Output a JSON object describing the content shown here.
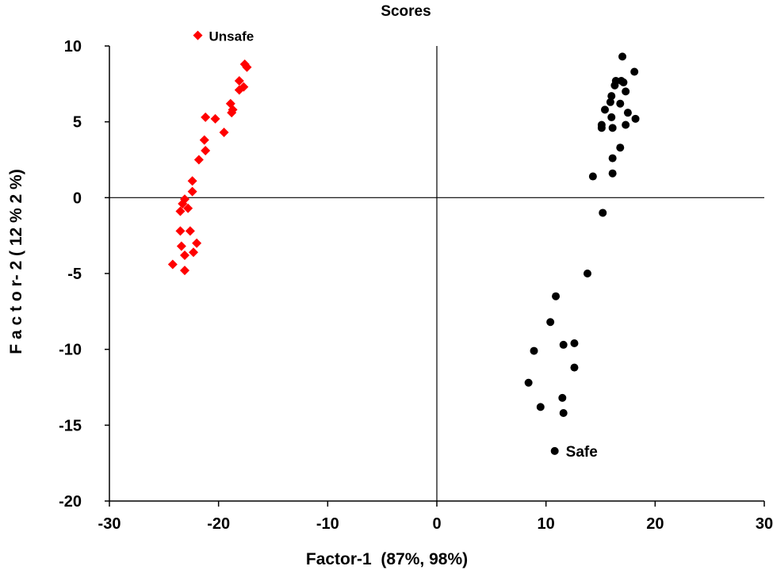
{
  "chart_data": {
    "type": "scatter",
    "title": "Scores",
    "xlabel": "Factor-1  (87%, 98%)",
    "ylabel": "F a c t o r- 2 ( 12 % 2 %)",
    "xlim": [
      -30,
      30
    ],
    "ylim": [
      -20,
      10
    ],
    "xticks": [
      -30,
      -20,
      -10,
      0,
      10,
      20,
      30
    ],
    "yticks": [
      -20,
      -15,
      -10,
      -5,
      0,
      5,
      10
    ],
    "x_tick_labels": [
      "-30",
      "-20",
      "-10",
      "0",
      "10",
      "20",
      "30"
    ],
    "y_tick_labels": [
      "-20",
      "-15",
      "-10",
      "-5",
      "0",
      "5",
      "10"
    ],
    "grid": false,
    "reference_lines": {
      "x": 0,
      "y": 0
    },
    "legend_placement": "inside",
    "series": [
      {
        "name": "Unsafe",
        "marker": "diamond",
        "color": "#ff0000",
        "legend_marker": {
          "x": -21.9,
          "y": 10.7
        },
        "points": [
          [
            -17.6,
            8.8
          ],
          [
            -17.4,
            8.6
          ],
          [
            -18.1,
            7.7
          ],
          [
            -17.7,
            7.3
          ],
          [
            -18.1,
            7.1
          ],
          [
            -18.9,
            6.2
          ],
          [
            -18.8,
            5.6
          ],
          [
            -18.7,
            5.8
          ],
          [
            -21.2,
            5.3
          ],
          [
            -20.3,
            5.2
          ],
          [
            -19.5,
            4.3
          ],
          [
            -21.3,
            3.8
          ],
          [
            -21.2,
            3.1
          ],
          [
            -21.8,
            2.5
          ],
          [
            -22.4,
            1.1
          ],
          [
            -22.4,
            0.4
          ],
          [
            -23.1,
            -0.1
          ],
          [
            -23.3,
            -0.4
          ],
          [
            -22.8,
            -0.7
          ],
          [
            -23.5,
            -0.9
          ],
          [
            -23.5,
            -2.2
          ],
          [
            -22.6,
            -2.2
          ],
          [
            -22.0,
            -3.0
          ],
          [
            -23.4,
            -3.2
          ],
          [
            -22.3,
            -3.6
          ],
          [
            -23.1,
            -3.8
          ],
          [
            -24.2,
            -4.4
          ],
          [
            -23.1,
            -4.8
          ]
        ]
      },
      {
        "name": "Safe",
        "marker": "circle",
        "color": "#000000",
        "legend_marker": {
          "x": 10.8,
          "y": -16.7
        },
        "points": [
          [
            17.0,
            9.3
          ],
          [
            18.1,
            8.3
          ],
          [
            16.4,
            7.7
          ],
          [
            16.9,
            7.7
          ],
          [
            17.1,
            7.6
          ],
          [
            16.3,
            7.4
          ],
          [
            17.3,
            7.0
          ],
          [
            16.0,
            6.7
          ],
          [
            15.9,
            6.3
          ],
          [
            16.8,
            6.2
          ],
          [
            15.4,
            5.8
          ],
          [
            16.0,
            5.3
          ],
          [
            17.5,
            5.6
          ],
          [
            18.2,
            5.2
          ],
          [
            15.1,
            4.8
          ],
          [
            15.1,
            4.6
          ],
          [
            16.1,
            4.6
          ],
          [
            17.3,
            4.8
          ],
          [
            16.8,
            3.3
          ],
          [
            16.1,
            2.6
          ],
          [
            14.3,
            1.4
          ],
          [
            16.1,
            1.6
          ],
          [
            15.2,
            -1.0
          ],
          [
            13.8,
            -5.0
          ],
          [
            10.9,
            -6.5
          ],
          [
            10.4,
            -8.2
          ],
          [
            8.9,
            -10.1
          ],
          [
            11.6,
            -9.7
          ],
          [
            12.6,
            -9.6
          ],
          [
            12.6,
            -11.2
          ],
          [
            8.4,
            -12.2
          ],
          [
            9.5,
            -13.8
          ],
          [
            11.5,
            -13.2
          ],
          [
            11.6,
            -14.2
          ]
        ]
      }
    ]
  }
}
